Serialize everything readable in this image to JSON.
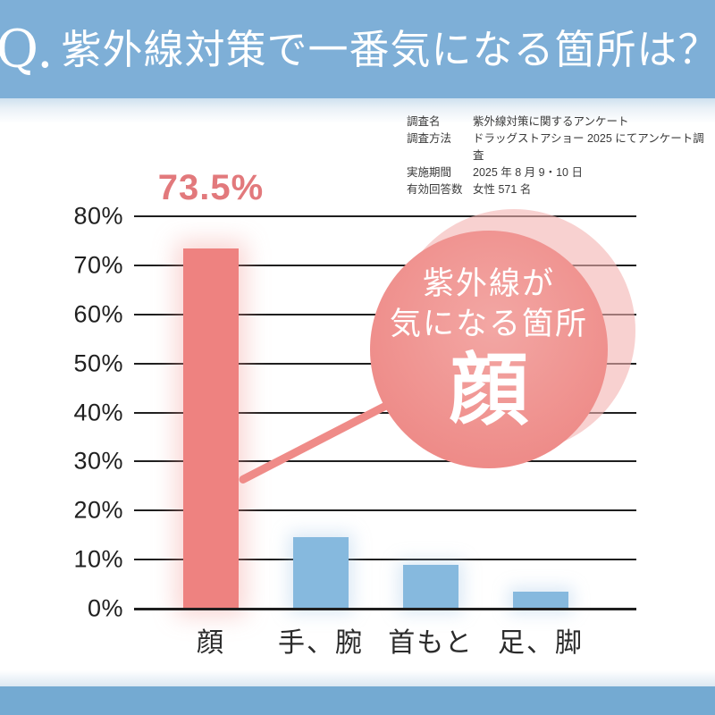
{
  "header": {
    "q": "Q.",
    "title": "紫外線対策で一番気になる箇所は？"
  },
  "survey": {
    "rows": [
      {
        "label": "調査名",
        "value": "紫外線対策に関するアンケート"
      },
      {
        "label": "調査方法",
        "value": "ドラッグストアショー 2025 にてアンケート調査"
      },
      {
        "label": "実施期間",
        "value": "2025 年 8 月 9・10 日"
      },
      {
        "label": "有効回答数",
        "value": "女性 571 名"
      }
    ]
  },
  "chart_data": {
    "type": "bar",
    "title": "",
    "categories": [
      "顔",
      "手、腕",
      "首もと",
      "足、脚"
    ],
    "values": [
      73.5,
      14.5,
      9,
      3.5
    ],
    "xlabel": "",
    "ylabel": "",
    "ylim": [
      0,
      80
    ],
    "yticks": [
      "80%",
      "70%",
      "60%",
      "50%",
      "40%",
      "30%",
      "20%",
      "10%",
      "0%"
    ],
    "grid": true,
    "legend": "none",
    "highlight_index": 0,
    "highlight_label": "73.5%",
    "colors": {
      "highlight_bar": "#ee8280",
      "default_bar": "#86b9de",
      "value_label": "#e2797c",
      "gridline": "#1f1f1f"
    }
  },
  "callout": {
    "line1": "紫外線が",
    "line2": "気になる箇所",
    "big": "顔"
  },
  "colors": {
    "header_bg": "#7eafd7",
    "footer_bg": "#74aad2",
    "circle_main": "#ee8b88",
    "circle_light": "#f4b2b0",
    "connector": "#ef8b88"
  }
}
